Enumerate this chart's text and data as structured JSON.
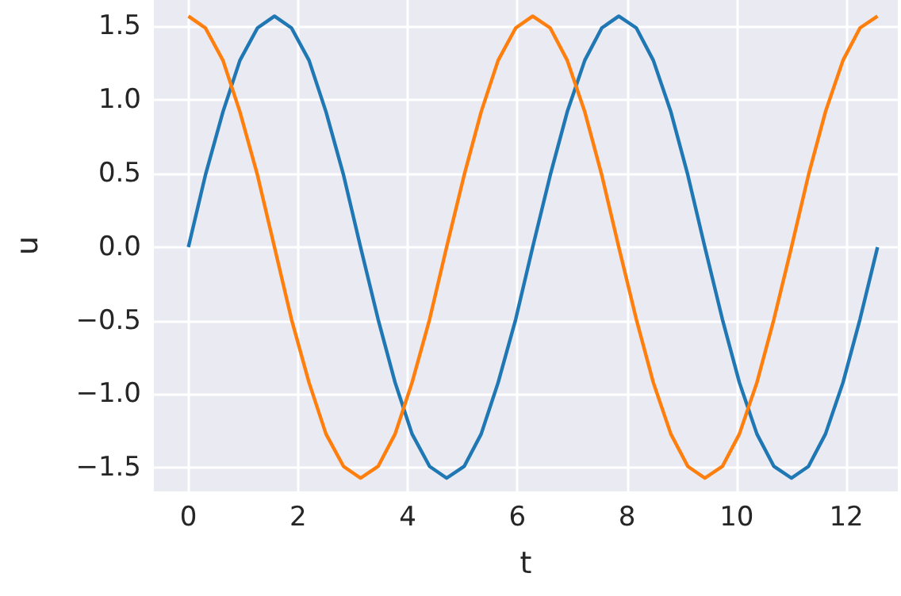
{
  "chart_data": {
    "type": "line",
    "xlabel": "t",
    "ylabel": "u",
    "x": [
      0,
      0.31,
      0.63,
      0.94,
      1.26,
      1.57,
      1.88,
      2.2,
      2.51,
      2.83,
      3.14,
      3.46,
      3.77,
      4.08,
      4.4,
      4.71,
      5.03,
      5.34,
      5.65,
      5.97,
      6.28,
      6.6,
      6.91,
      7.23,
      7.54,
      7.85,
      8.17,
      8.48,
      8.8,
      9.11,
      9.42,
      9.74,
      10.05,
      10.37,
      10.68,
      11.0,
      11.31,
      11.62,
      11.94,
      12.25,
      12.57
    ],
    "series": [
      {
        "color": "#1f77b4",
        "values": [
          0,
          0.49,
          0.92,
          1.27,
          1.49,
          1.57,
          1.49,
          1.27,
          0.92,
          0.49,
          0,
          -0.49,
          -0.92,
          -1.27,
          -1.49,
          -1.57,
          -1.49,
          -1.27,
          -0.92,
          -0.49,
          0,
          0.49,
          0.92,
          1.27,
          1.49,
          1.57,
          1.49,
          1.27,
          0.92,
          0.49,
          0,
          -0.49,
          -0.92,
          -1.27,
          -1.49,
          -1.57,
          -1.49,
          -1.27,
          -0.92,
          -0.49,
          0
        ]
      },
      {
        "color": "#ff7f0e",
        "values": [
          1.57,
          1.49,
          1.27,
          0.92,
          0.49,
          0,
          -0.49,
          -0.92,
          -1.27,
          -1.49,
          -1.57,
          -1.49,
          -1.27,
          -0.92,
          -0.49,
          0,
          0.49,
          0.92,
          1.27,
          1.49,
          1.57,
          1.49,
          1.27,
          0.92,
          0.49,
          0,
          -0.49,
          -0.92,
          -1.27,
          -1.49,
          -1.57,
          -1.49,
          -1.27,
          -0.92,
          -0.49,
          0,
          0.49,
          0.92,
          1.27,
          1.49,
          1.57
        ]
      }
    ],
    "xlim": [
      -0.63,
      12.94
    ],
    "ylim": [
      -1.66,
      1.68
    ],
    "xticks": [
      0,
      2,
      4,
      6,
      8,
      10,
      12
    ],
    "yticks": [
      {
        "value": -1.5,
        "label": "−1.5"
      },
      {
        "value": -1.0,
        "label": "−1.0"
      },
      {
        "value": -0.5,
        "label": "−0.5"
      },
      {
        "value": 0,
        "label": "0.0"
      },
      {
        "value": 0.5,
        "label": "0.5"
      },
      {
        "value": 1.0,
        "label": "1.0"
      },
      {
        "value": 1.5,
        "label": "1.5"
      }
    ],
    "grid": true,
    "marker": "none",
    "line_style": "solid"
  }
}
